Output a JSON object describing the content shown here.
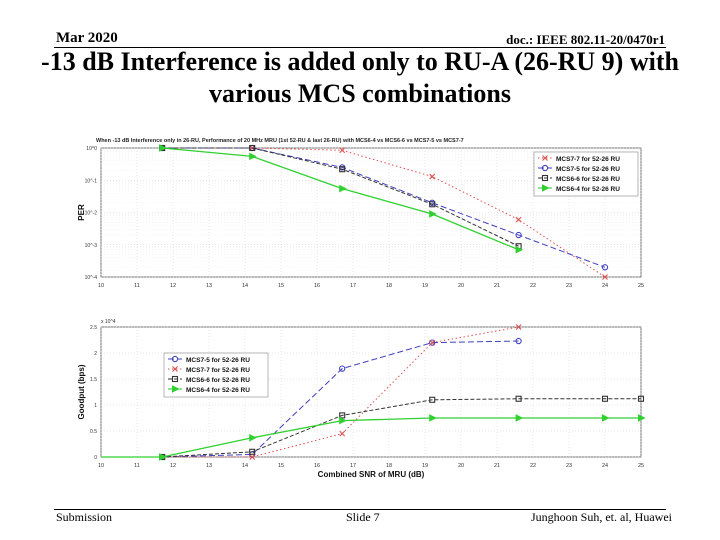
{
  "slide": {
    "date": "Mar 2020",
    "doc_id": "doc.: IEEE 802.11-20/0470r1",
    "title_line1": "-13 dB Interference is added only to RU-A (26-RU 9) with",
    "title_line2": "various MCS combinations",
    "footer_left": "Submission",
    "footer_center": "Slide 7",
    "footer_right": "Junghoon Suh, et. al, Huawei"
  },
  "chart_data": [
    {
      "type": "line",
      "title": "When -13 dB Interference only in 26-RU, Performance of 20 MHz MRU (1st 52-RU & last 26-RU) with MCS6-4 vs MCS6-6 vs MCS7-5 vs MCS7-7",
      "xlabel": "",
      "ylabel": "PER",
      "yscale": "log",
      "xlim": [
        10,
        25
      ],
      "ylim": [
        0.0001,
        1
      ],
      "x_ticks": [
        10,
        11,
        12,
        13,
        14,
        15,
        16,
        17,
        18,
        19,
        20,
        21,
        22,
        23,
        24,
        25
      ],
      "y_ticks": [
        "10^0",
        "10^-1",
        "10^-2",
        "10^-3",
        "10^-4"
      ],
      "y_tick_values": [
        1,
        0.1,
        0.01,
        0.001,
        0.0001
      ],
      "grid": true,
      "legend": "top-right",
      "series": [
        {
          "name": "MCS7-7 for 52-26 RU",
          "color": "#e05050",
          "marker": "x",
          "x": [
            11.7,
            14.2,
            16.7,
            19.2,
            21.6,
            24.0
          ],
          "values": [
            1,
            1,
            0.85,
            0.13,
            0.006,
            0.0001
          ]
        },
        {
          "name": "MCS7-5 for 52-26 RU",
          "color": "#4040c0",
          "marker": "o",
          "x": [
            11.7,
            14.2,
            16.7,
            19.2,
            21.6,
            24.0
          ],
          "values": [
            1,
            1,
            0.25,
            0.02,
            0.002,
            0.0002
          ]
        },
        {
          "name": "MCS6-6 for 52-26 RU",
          "color": "#333333",
          "marker": "s",
          "x": [
            11.7,
            14.2,
            16.7,
            19.2,
            21.6
          ],
          "values": [
            1,
            1,
            0.22,
            0.018,
            0.0009
          ]
        },
        {
          "name": "MCS6-4 for 52-26 RU",
          "color": "#30d030",
          "marker": "tri",
          "x": [
            11.7,
            14.2,
            16.7,
            19.2,
            21.6
          ],
          "values": [
            1,
            0.55,
            0.055,
            0.009,
            0.0007
          ]
        }
      ]
    },
    {
      "type": "line",
      "title": "",
      "xlabel": "Combined SNR of MRU (dB)",
      "ylabel": "Goodput (bps)",
      "y_multiplier": "x 10^4",
      "xlim": [
        10,
        25
      ],
      "ylim": [
        0,
        2.5
      ],
      "x_ticks": [
        10,
        11,
        12,
        13,
        14,
        15,
        16,
        17,
        18,
        19,
        20,
        21,
        22,
        23,
        24,
        25
      ],
      "y_ticks": [
        0,
        0.5,
        1,
        1.5,
        2,
        2.5
      ],
      "grid": true,
      "legend": "top-left",
      "series": [
        {
          "name": "MCS7-5 for 52-26 RU",
          "color": "#4040c0",
          "marker": "o",
          "x": [
            10,
            11.7,
            14.2,
            16.7,
            19.2,
            21.6
          ],
          "values": [
            0,
            0,
            0.05,
            1.7,
            2.2,
            2.23
          ]
        },
        {
          "name": "MCS7-7 for 52-26 RU",
          "color": "#e05050",
          "marker": "x",
          "x": [
            10,
            11.7,
            14.2,
            16.7,
            19.2,
            21.6
          ],
          "values": [
            0,
            0,
            0,
            0.45,
            2.2,
            2.5
          ]
        },
        {
          "name": "MCS6-6 for 52-26 RU",
          "color": "#333333",
          "marker": "s",
          "x": [
            10,
            11.7,
            14.2,
            16.7,
            19.2,
            21.6,
            24.0,
            25
          ],
          "values": [
            0,
            0,
            0.1,
            0.8,
            1.1,
            1.12,
            1.12,
            1.12
          ]
        },
        {
          "name": "MCS6-4 for 52-26 RU",
          "color": "#30d030",
          "marker": "tri",
          "x": [
            10,
            11.7,
            14.2,
            16.7,
            19.2,
            21.6,
            24.0,
            25
          ],
          "values": [
            0,
            0,
            0.37,
            0.7,
            0.75,
            0.75,
            0.75,
            0.75
          ]
        }
      ]
    }
  ]
}
